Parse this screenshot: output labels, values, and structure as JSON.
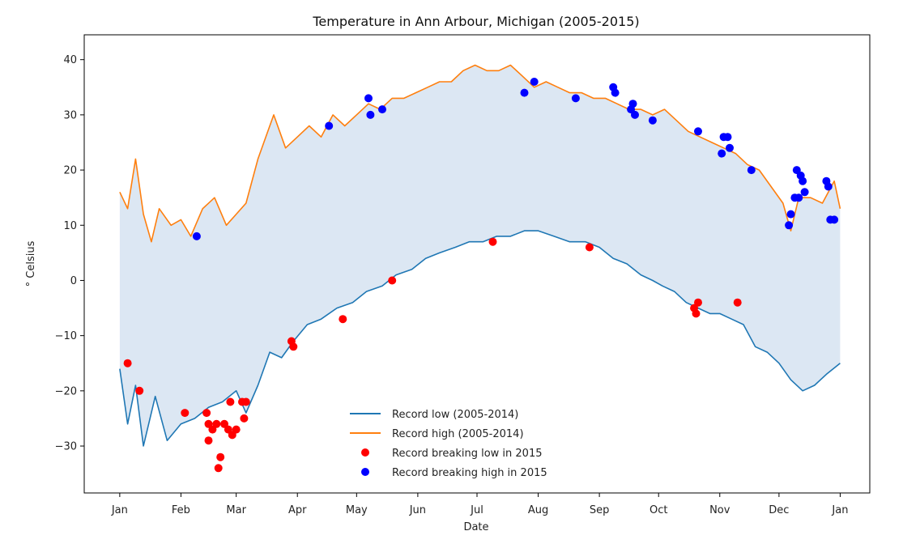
{
  "chart_data": {
    "type": "line",
    "title": "Temperature in Ann Arbour, Michigan (2005-2015)",
    "xlabel": "Date",
    "ylabel": "° Celsius",
    "ylim": [
      -38.5,
      44.5
    ],
    "y_ticks": [
      40,
      30,
      20,
      10,
      0,
      -10,
      -20,
      -30
    ],
    "y_tick_labels": [
      "40",
      "30",
      "20",
      "10",
      "0",
      "−10",
      "−20",
      "−30"
    ],
    "x_ticks": [
      "Jan",
      "Feb",
      "Mar",
      "Apr",
      "May",
      "Jun",
      "Jul",
      "Aug",
      "Sep",
      "Oct",
      "Nov",
      "Dec",
      "Jan"
    ],
    "x_tick_days": [
      0,
      31,
      59,
      90,
      120,
      151,
      181,
      212,
      243,
      273,
      304,
      334,
      365
    ],
    "xlim_days": [
      -18,
      380
    ],
    "fill_between": {
      "color": "#dce7f3",
      "between": [
        "Record high (2005-2014)",
        "Record low (2005-2014)"
      ]
    },
    "grid": false,
    "legend_position": "lower-center",
    "series": [
      {
        "name": "Record low (2005-2014)",
        "kind": "line",
        "color": "#1f77b4",
        "points": [
          [
            0,
            -16
          ],
          [
            4,
            -26
          ],
          [
            8,
            -19
          ],
          [
            12,
            -30
          ],
          [
            18,
            -21
          ],
          [
            24,
            -29
          ],
          [
            31,
            -26
          ],
          [
            38,
            -25
          ],
          [
            45,
            -23
          ],
          [
            52,
            -22
          ],
          [
            59,
            -20
          ],
          [
            64,
            -24
          ],
          [
            70,
            -19
          ],
          [
            76,
            -13
          ],
          [
            82,
            -14
          ],
          [
            88,
            -11
          ],
          [
            95,
            -8
          ],
          [
            102,
            -7
          ],
          [
            110,
            -5
          ],
          [
            118,
            -4
          ],
          [
            125,
            -2
          ],
          [
            133,
            -1
          ],
          [
            140,
            1
          ],
          [
            148,
            2
          ],
          [
            155,
            4
          ],
          [
            162,
            5
          ],
          [
            170,
            6
          ],
          [
            177,
            7
          ],
          [
            184,
            7
          ],
          [
            191,
            8
          ],
          [
            198,
            8
          ],
          [
            205,
            9
          ],
          [
            212,
            9
          ],
          [
            220,
            8
          ],
          [
            228,
            7
          ],
          [
            236,
            7
          ],
          [
            243,
            6
          ],
          [
            250,
            4
          ],
          [
            257,
            3
          ],
          [
            264,
            1
          ],
          [
            270,
            0
          ],
          [
            275,
            -1
          ],
          [
            281,
            -2
          ],
          [
            287,
            -4
          ],
          [
            293,
            -5
          ],
          [
            299,
            -6
          ],
          [
            304,
            -6
          ],
          [
            310,
            -7
          ],
          [
            316,
            -8
          ],
          [
            322,
            -12
          ],
          [
            328,
            -13
          ],
          [
            334,
            -15
          ],
          [
            340,
            -18
          ],
          [
            346,
            -20
          ],
          [
            352,
            -19
          ],
          [
            358,
            -17
          ],
          [
            365,
            -15
          ]
        ]
      },
      {
        "name": "Record high (2005-2014)",
        "kind": "line",
        "color": "#ff7f0e",
        "points": [
          [
            0,
            16
          ],
          [
            4,
            13
          ],
          [
            8,
            22
          ],
          [
            12,
            12
          ],
          [
            16,
            7
          ],
          [
            20,
            13
          ],
          [
            26,
            10
          ],
          [
            31,
            11
          ],
          [
            36,
            8
          ],
          [
            42,
            13
          ],
          [
            48,
            15
          ],
          [
            54,
            10
          ],
          [
            59,
            12
          ],
          [
            64,
            14
          ],
          [
            70,
            22
          ],
          [
            78,
            30
          ],
          [
            84,
            24
          ],
          [
            90,
            26
          ],
          [
            96,
            28
          ],
          [
            102,
            26
          ],
          [
            108,
            30
          ],
          [
            114,
            28
          ],
          [
            120,
            30
          ],
          [
            126,
            32
          ],
          [
            132,
            31
          ],
          [
            138,
            33
          ],
          [
            144,
            33
          ],
          [
            150,
            34
          ],
          [
            156,
            35
          ],
          [
            162,
            36
          ],
          [
            168,
            36
          ],
          [
            174,
            38
          ],
          [
            180,
            39
          ],
          [
            186,
            38
          ],
          [
            192,
            38
          ],
          [
            198,
            39
          ],
          [
            204,
            37
          ],
          [
            210,
            35
          ],
          [
            216,
            36
          ],
          [
            222,
            35
          ],
          [
            228,
            34
          ],
          [
            234,
            34
          ],
          [
            240,
            33
          ],
          [
            246,
            33
          ],
          [
            252,
            32
          ],
          [
            258,
            31
          ],
          [
            264,
            31
          ],
          [
            270,
            30
          ],
          [
            276,
            31
          ],
          [
            282,
            29
          ],
          [
            288,
            27
          ],
          [
            294,
            26
          ],
          [
            300,
            25
          ],
          [
            306,
            24
          ],
          [
            312,
            23
          ],
          [
            318,
            21
          ],
          [
            324,
            20
          ],
          [
            330,
            17
          ],
          [
            336,
            14
          ],
          [
            340,
            9
          ],
          [
            344,
            15
          ],
          [
            350,
            15
          ],
          [
            356,
            14
          ],
          [
            362,
            18
          ],
          [
            365,
            13
          ]
        ]
      },
      {
        "name": "Record breaking low in 2015",
        "kind": "scatter",
        "color": "#ff0000",
        "points": [
          [
            4,
            -15
          ],
          [
            10,
            -20
          ],
          [
            33,
            -24
          ],
          [
            44,
            -24
          ],
          [
            45,
            -26
          ],
          [
            45,
            -29
          ],
          [
            47,
            -27
          ],
          [
            49,
            -26
          ],
          [
            50,
            -34
          ],
          [
            51,
            -32
          ],
          [
            53,
            -26
          ],
          [
            55,
            -27
          ],
          [
            56,
            -22
          ],
          [
            57,
            -28
          ],
          [
            59,
            -27
          ],
          [
            62,
            -22
          ],
          [
            63,
            -25
          ],
          [
            64,
            -22
          ],
          [
            87,
            -11
          ],
          [
            88,
            -12
          ],
          [
            113,
            -7
          ],
          [
            138,
            0
          ],
          [
            189,
            7
          ],
          [
            238,
            6
          ],
          [
            291,
            -5
          ],
          [
            292,
            -6
          ],
          [
            293,
            -4
          ],
          [
            313,
            -4
          ]
        ]
      },
      {
        "name": "Record breaking high in 2015",
        "kind": "scatter",
        "color": "#0000ff",
        "points": [
          [
            39,
            8
          ],
          [
            106,
            28
          ],
          [
            126,
            33
          ],
          [
            127,
            30
          ],
          [
            133,
            31
          ],
          [
            205,
            34
          ],
          [
            210,
            36
          ],
          [
            231,
            33
          ],
          [
            250,
            35
          ],
          [
            251,
            34
          ],
          [
            259,
            31
          ],
          [
            260,
            32
          ],
          [
            261,
            30
          ],
          [
            270,
            29
          ],
          [
            293,
            27
          ],
          [
            305,
            23
          ],
          [
            306,
            26
          ],
          [
            308,
            26
          ],
          [
            309,
            24
          ],
          [
            320,
            20
          ],
          [
            339,
            10
          ],
          [
            340,
            12
          ],
          [
            342,
            15
          ],
          [
            343,
            20
          ],
          [
            344,
            15
          ],
          [
            345,
            19
          ],
          [
            346,
            18
          ],
          [
            347,
            16
          ],
          [
            358,
            18
          ],
          [
            359,
            17
          ],
          [
            360,
            11
          ],
          [
            362,
            11
          ]
        ]
      }
    ]
  }
}
